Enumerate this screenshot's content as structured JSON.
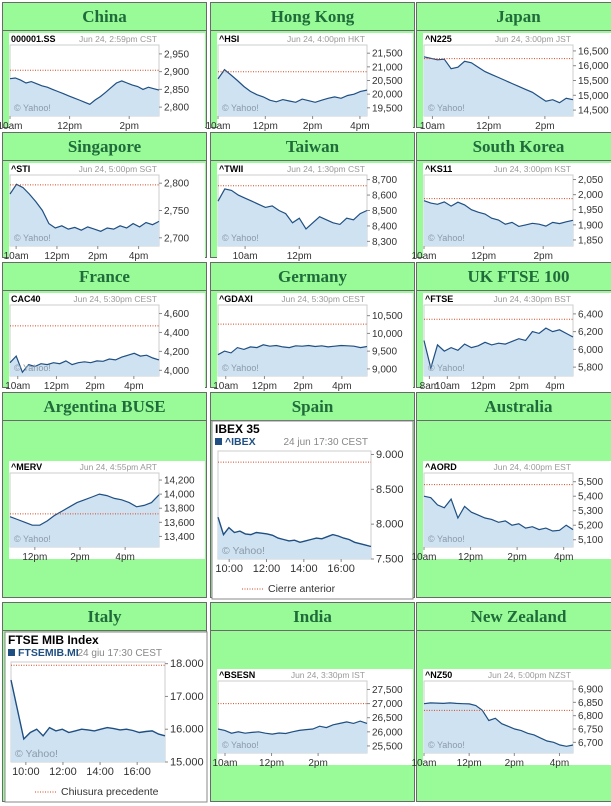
{
  "page": {
    "background": "#98fb98",
    "title_color": "#1f6b3a"
  },
  "markets": [
    {
      "name": "China",
      "chart_data": {
        "type": "area",
        "symbol": "000001.SS",
        "timestamp": "Jun 24, 2:59pm CST",
        "source": "© Yahoo!",
        "xticks": [
          "10am",
          "12pm",
          "2pm"
        ],
        "xtick_pos": [
          0,
          2,
          4
        ],
        "x_range": [
          0,
          5
        ],
        "ylim": [
          2775,
          2975
        ],
        "yticks": [
          "2,950",
          "2,900",
          "2,850",
          "2,800"
        ],
        "ytick_vals": [
          2950,
          2900,
          2850,
          2800
        ],
        "prev_close": 2904,
        "values": [
          2880,
          2882,
          2876,
          2868,
          2872,
          2866,
          2860,
          2856,
          2850,
          2844,
          2838,
          2832,
          2826,
          2820,
          2814,
          2808,
          2820,
          2830,
          2842,
          2855,
          2868,
          2874,
          2868,
          2862,
          2858,
          2850,
          2856,
          2852,
          2848
        ]
      }
    },
    {
      "name": "Hong Kong",
      "chart_data": {
        "type": "area",
        "symbol": "^HSI",
        "timestamp": "Jun 24, 4:00pm HKT",
        "source": "© Yahoo!",
        "xticks": [
          "10am",
          "12pm",
          "2pm",
          "4pm"
        ],
        "xtick_pos": [
          0,
          2,
          4,
          6
        ],
        "x_range": [
          0,
          6.3
        ],
        "ylim": [
          19200,
          21800
        ],
        "yticks": [
          "21,500",
          "21,000",
          "20,500",
          "20,000",
          "19,500"
        ],
        "ytick_vals": [
          21500,
          21000,
          20500,
          20000,
          19500
        ],
        "prev_close": 20820,
        "values": [
          20560,
          20900,
          20700,
          20500,
          20280,
          20100,
          19980,
          19900,
          19780,
          19720,
          19800,
          19750,
          19700,
          19820,
          19760,
          19700,
          19780,
          19850,
          19900,
          19850,
          19950,
          20000,
          20100,
          20150
        ]
      }
    },
    {
      "name": "Japan",
      "chart_data": {
        "type": "area",
        "symbol": "^N225",
        "timestamp": "Jun 24, 3:00pm JST",
        "source": "© Yahoo!",
        "xticks": [
          "10am",
          "12pm",
          "2pm"
        ],
        "xtick_pos": [
          0,
          2,
          4
        ],
        "x_range": [
          -0.3,
          5
        ],
        "ylim": [
          14300,
          16700
        ],
        "yticks": [
          "16,500",
          "16,000",
          "15,500",
          "15,000",
          "14,500"
        ],
        "ytick_vals": [
          16500,
          16000,
          15500,
          15000,
          14500
        ],
        "prev_close": 16240,
        "values": [
          16300,
          16250,
          16200,
          16220,
          15900,
          15950,
          16150,
          16100,
          15950,
          15800,
          15700,
          15600,
          15500,
          15400,
          15300,
          15200,
          15100,
          14950,
          14800,
          14850,
          14750,
          14900,
          14850
        ]
      }
    },
    {
      "name": "Singapore",
      "chart_data": {
        "type": "area",
        "symbol": "^STI",
        "timestamp": "Jun 24, 5:00pm SGT",
        "source": "© Yahoo!",
        "xticks": [
          "10am",
          "12pm",
          "2pm",
          "4pm"
        ],
        "xtick_pos": [
          0,
          2,
          4,
          6
        ],
        "x_range": [
          -0.3,
          7
        ],
        "ylim": [
          2685,
          2815
        ],
        "yticks": [
          "2,800",
          "2,750",
          "2,700"
        ],
        "ytick_vals": [
          2800,
          2750,
          2700
        ],
        "prev_close": 2797,
        "values": [
          2780,
          2798,
          2792,
          2780,
          2766,
          2750,
          2726,
          2718,
          2722,
          2716,
          2719,
          2714,
          2720,
          2716,
          2712,
          2718,
          2716,
          2722,
          2718,
          2726,
          2720,
          2728,
          2724,
          2730
        ]
      }
    },
    {
      "name": "Taiwan",
      "chart_data": {
        "type": "area",
        "symbol": "^TWII",
        "timestamp": "Jun 24, 1:30pm CST",
        "source": "© Yahoo!",
        "xticks": [
          "10am",
          "12pm"
        ],
        "xtick_pos": [
          0,
          2
        ],
        "x_range": [
          -1,
          4.5
        ],
        "ylim": [
          8270,
          8730
        ],
        "yticks": [
          "8,700",
          "8,600",
          "8,500",
          "8,400",
          "8,300"
        ],
        "ytick_vals": [
          8700,
          8600,
          8500,
          8400,
          8300
        ],
        "prev_close": 8660,
        "values": [
          8560,
          8640,
          8630,
          8600,
          8580,
          8560,
          8540,
          8520,
          8530,
          8500,
          8480,
          8420,
          8450,
          8380,
          8420,
          8460,
          8440,
          8420,
          8410,
          8450,
          8440,
          8480,
          8500
        ]
      }
    },
    {
      "name": "South Korea",
      "chart_data": {
        "type": "area",
        "symbol": "^KS11",
        "timestamp": "Jun 24, 3:00pm KST",
        "source": "© Yahoo!",
        "xticks": [
          "10am",
          "12pm",
          "2pm"
        ],
        "xtick_pos": [
          0,
          2,
          4
        ],
        "x_range": [
          0,
          5
        ],
        "ylim": [
          1830,
          2065
        ],
        "yticks": [
          "2,050",
          "2,000",
          "1,950",
          "1,900",
          "1,850"
        ],
        "ytick_vals": [
          2050,
          2000,
          1950,
          1900,
          1850
        ],
        "prev_close": 1987,
        "values": [
          1980,
          1972,
          1968,
          1976,
          1962,
          1975,
          1966,
          1950,
          1942,
          1936,
          1922,
          1916,
          1902,
          1908,
          1895,
          1900,
          1905,
          1902,
          1896,
          1908,
          1904,
          1910,
          1915
        ]
      }
    },
    {
      "name": "France",
      "chart_data": {
        "type": "area",
        "symbol": "CAC40",
        "timestamp": "Jun 24, 5:30pm CEST",
        "source": "© Yahoo!",
        "xticks": [
          "10am",
          "12pm",
          "2pm",
          "4pm"
        ],
        "xtick_pos": [
          0,
          2,
          4,
          6
        ],
        "x_range": [
          -0.4,
          7.3
        ],
        "ylim": [
          3940,
          4690
        ],
        "yticks": [
          "4,600",
          "4,400",
          "4,200",
          "4,000"
        ],
        "ytick_vals": [
          4600,
          4400,
          4200,
          4000
        ],
        "prev_close": 4470,
        "values": [
          4080,
          4150,
          3980,
          4060,
          4040,
          4070,
          4060,
          4080,
          4070,
          4100,
          4060,
          4080,
          4090,
          4080,
          4100,
          4095,
          4120,
          4110,
          4140,
          4160,
          4180,
          4150,
          4160,
          4130,
          4110
        ]
      }
    },
    {
      "name": "Germany",
      "chart_data": {
        "type": "area",
        "symbol": "^GDAXI",
        "timestamp": "Jun 24, 5:30pm CEST",
        "source": "© Yahoo!",
        "xticks": [
          "10am",
          "12pm",
          "2pm",
          "4pm"
        ],
        "xtick_pos": [
          0,
          2,
          4,
          6
        ],
        "x_range": [
          -0.4,
          7.3
        ],
        "ylim": [
          8800,
          10800
        ],
        "yticks": [
          "10,500",
          "10,000",
          "9,500",
          "9,000"
        ],
        "ytick_vals": [
          10500,
          10000,
          9500,
          9000
        ],
        "prev_close": 10260,
        "values": [
          9400,
          9500,
          9450,
          9600,
          9550,
          9620,
          9600,
          9680,
          9640,
          9660,
          9620,
          9600,
          9650,
          9640,
          9660,
          9630,
          9650,
          9620,
          9640,
          9660,
          9650,
          9640,
          9600,
          9630
        ]
      }
    },
    {
      "name": "UK FTSE 100",
      "chart_data": {
        "type": "area",
        "symbol": "^FTSE",
        "timestamp": "Jun 24, 4:30pm BST",
        "source": "© Yahoo!",
        "xticks": [
          "8am",
          "10am",
          "12pm",
          "2pm",
          "4pm"
        ],
        "xtick_pos": [
          0,
          1,
          3,
          5,
          7
        ],
        "x_range": [
          -0.3,
          8
        ],
        "ylim": [
          5700,
          6500
        ],
        "yticks": [
          "6,400",
          "6,200",
          "6,000",
          "5,800"
        ],
        "ytick_vals": [
          6400,
          6200,
          6000,
          5800
        ],
        "prev_close": 6340,
        "values": [
          6100,
          5790,
          6050,
          5980,
          6020,
          5990,
          6060,
          6020,
          6040,
          6080,
          6050,
          6070,
          6060,
          6090,
          6120,
          6100,
          6200,
          6180,
          6240,
          6200,
          6220,
          6180,
          6140
        ]
      }
    },
    {
      "name": "Argentina BUSE",
      "chart_data": {
        "type": "area",
        "symbol": "^MERV",
        "timestamp": "Jun 24, 4:55pm ART",
        "source": "© Yahoo!",
        "xticks": [
          "12pm",
          "2pm",
          "4pm"
        ],
        "xtick_pos": [
          0,
          2,
          4
        ],
        "x_range": [
          -1.1,
          5.5
        ],
        "ylim": [
          13250,
          14300
        ],
        "yticks": [
          "14,200",
          "14,000",
          "13,800",
          "13,600",
          "13,400"
        ],
        "ytick_vals": [
          14200,
          14000,
          13800,
          13600,
          13400
        ],
        "prev_close": 13720,
        "values": [
          13680,
          13640,
          13600,
          13560,
          13560,
          13620,
          13700,
          13760,
          13820,
          13880,
          13920,
          13960,
          14000,
          13980,
          13940,
          13920,
          13880,
          13820,
          13840,
          13880,
          13990
        ]
      }
    },
    {
      "name": "Spain",
      "chart_data": {
        "type": "area",
        "title": "IBEX 35",
        "symbol": "^IBEX",
        "timestamp": "24 jun 17:30 CEST",
        "source": "© Yahoo!",
        "legend": "Cierre anterior",
        "xticks": [
          "10:00",
          "12:00",
          "14:00",
          "16:00"
        ],
        "xtick_pos": [
          0,
          2,
          4,
          6
        ],
        "x_range": [
          -0.6,
          7.6
        ],
        "ylim": [
          7500,
          9050
        ],
        "yticks": [
          "9.000",
          "8.500",
          "8.000",
          "7.500"
        ],
        "ytick_vals": [
          9000,
          8500,
          8000,
          7500
        ],
        "prev_close": 8890,
        "values": [
          8100,
          7850,
          7950,
          7880,
          7900,
          7860,
          7850,
          7880,
          7870,
          7860,
          7840,
          7800,
          7780,
          7760,
          7770,
          7740,
          7760,
          7780,
          7800,
          7790,
          7820,
          7850,
          7830,
          7800,
          7780,
          7740,
          7720,
          7700,
          7680
        ]
      }
    },
    {
      "name": "Australia",
      "chart_data": {
        "type": "area",
        "symbol": "^AORD",
        "timestamp": "Jun 24, 4:00pm EST",
        "source": "© Yahoo!",
        "xticks": [
          "10am",
          "12pm",
          "2pm",
          "4pm"
        ],
        "xtick_pos": [
          0,
          2,
          4,
          6
        ],
        "x_range": [
          0,
          6.4
        ],
        "ylim": [
          5050,
          5560
        ],
        "yticks": [
          "5,500",
          "5,400",
          "5,300",
          "5,200",
          "5,100"
        ],
        "ytick_vals": [
          5500,
          5400,
          5300,
          5200,
          5100
        ],
        "prev_close": 5480,
        "values": [
          5400,
          5390,
          5340,
          5320,
          5380,
          5250,
          5330,
          5290,
          5270,
          5250,
          5240,
          5220,
          5230,
          5200,
          5210,
          5180,
          5190,
          5170,
          5180,
          5160,
          5165,
          5200,
          5170
        ]
      }
    },
    {
      "name": "Italy",
      "chart_data": {
        "type": "area",
        "title": "FTSE MIB Index",
        "symbol": "FTSEMIB.MI",
        "timestamp": "24 giu 17:30 CEST",
        "source": "© Yahoo!",
        "legend": "Chiusura precedente",
        "xticks": [
          "10:00",
          "12:00",
          "14:00",
          "16:00"
        ],
        "xtick_pos": [
          0,
          2,
          4,
          6
        ],
        "x_range": [
          -0.8,
          7.5
        ],
        "ylim": [
          15000,
          18050
        ],
        "yticks": [
          "18.000",
          "17.000",
          "16.000",
          "15.000"
        ],
        "ytick_vals": [
          18000,
          17000,
          16000,
          15000
        ],
        "prev_close": 17950,
        "values": [
          17500,
          16600,
          15700,
          15900,
          16000,
          15800,
          16050,
          15950,
          16000,
          15900,
          15950,
          16000,
          15980,
          15950,
          16000,
          16050,
          16020,
          15980,
          16000,
          15960,
          15900,
          15930,
          15950,
          15850,
          15800
        ]
      }
    },
    {
      "name": "India",
      "chart_data": {
        "type": "area",
        "symbol": "^BSESN",
        "timestamp": "Jun 24, 3:30pm IST",
        "source": "© Yahoo!",
        "xticks": [
          "10am",
          "12pm",
          "2pm"
        ],
        "xtick_pos": [
          0,
          2,
          4
        ],
        "x_range": [
          -0.3,
          6.1
        ],
        "ylim": [
          25250,
          27800
        ],
        "yticks": [
          "27,500",
          "27,000",
          "26,500",
          "26,000",
          "25,500"
        ],
        "ytick_vals": [
          27500,
          27000,
          26500,
          26000,
          25500
        ],
        "prev_close": 27000,
        "values": [
          26100,
          26050,
          25950,
          26000,
          25950,
          25980,
          26000,
          25950,
          25920,
          25960,
          25940,
          26000,
          26050,
          26080,
          26100,
          26200,
          26150,
          26250,
          26300,
          26350,
          26300,
          26380,
          26300
        ]
      }
    },
    {
      "name": "New Zealand",
      "chart_data": {
        "type": "area",
        "symbol": "^NZ50",
        "timestamp": "Jun 24, 5:00pm NZST",
        "source": "© Yahoo!",
        "xticks": [
          "10am",
          "12pm",
          "2pm",
          "4pm"
        ],
        "xtick_pos": [
          0,
          2,
          4,
          6
        ],
        "x_range": [
          0,
          6.6
        ],
        "ylim": [
          6660,
          6930
        ],
        "yticks": [
          "6,900",
          "6,850",
          "6,800",
          "6,750",
          "6,700"
        ],
        "ytick_vals": [
          6900,
          6850,
          6800,
          6750,
          6700
        ],
        "prev_close": 6820,
        "values": [
          6845,
          6848,
          6847,
          6846,
          6848,
          6846,
          6845,
          6844,
          6838,
          6820,
          6782,
          6790,
          6770,
          6760,
          6750,
          6744,
          6734,
          6728,
          6716,
          6705,
          6700,
          6690,
          6685,
          6690
        ]
      }
    }
  ]
}
